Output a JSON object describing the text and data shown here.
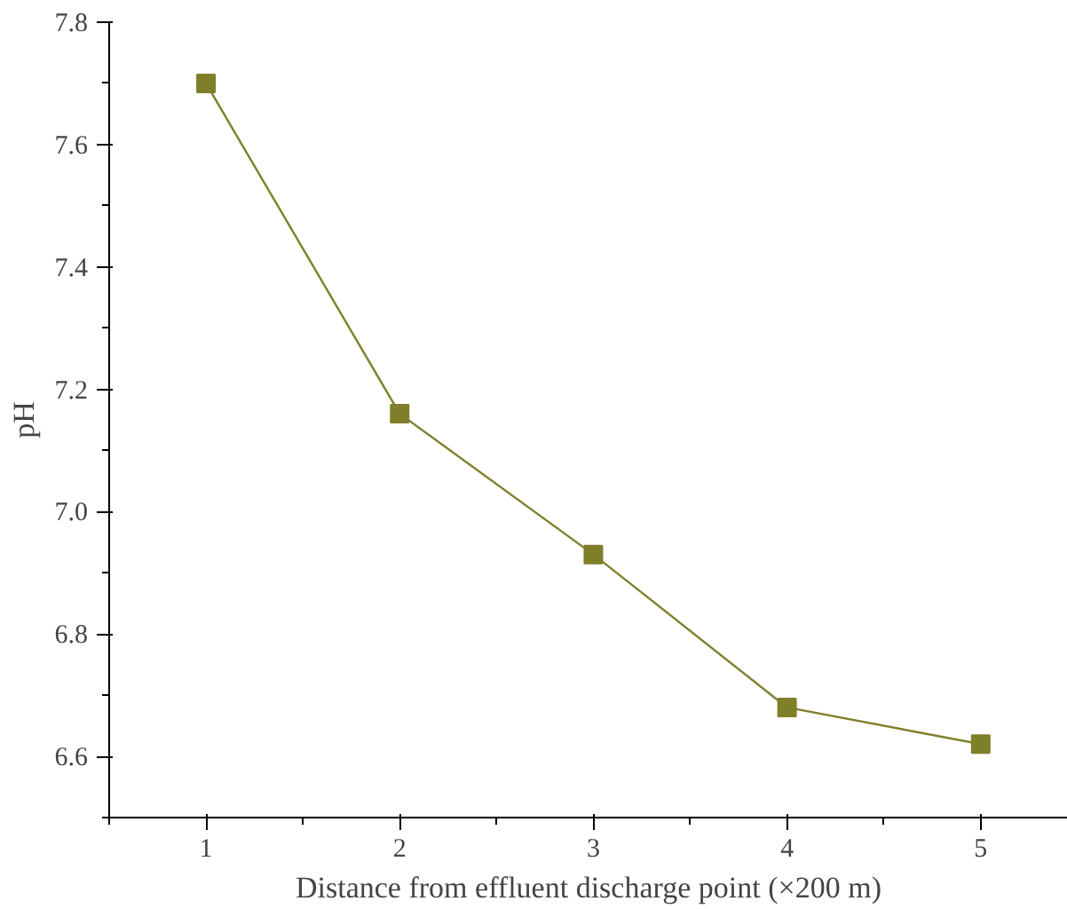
{
  "chart_data": {
    "type": "line",
    "xlabel": "Distance from effluent discharge point (×200 m)",
    "ylabel": "pH",
    "x": [
      1,
      2,
      3,
      4,
      5
    ],
    "series": [
      {
        "color": "#7f7f2a",
        "values": [
          7.7,
          7.16,
          6.93,
          6.68,
          6.62
        ]
      }
    ],
    "xlim": [
      0.5,
      5.45
    ],
    "ylim": [
      6.5,
      7.8
    ],
    "xticks": [
      1,
      2,
      3,
      4,
      5
    ],
    "yticks": [
      {
        "value": 6.6,
        "label": "6.6"
      },
      {
        "value": 6.8,
        "label": "6.8"
      },
      {
        "value": 7.0,
        "label": "7.0"
      },
      {
        "value": 7.2,
        "label": "7.2"
      },
      {
        "value": 7.4,
        "label": "7.4"
      },
      {
        "value": 7.6,
        "label": "7.6"
      },
      {
        "value": 7.8,
        "label": "7.8"
      }
    ],
    "marker": "square",
    "line_style": "solid"
  }
}
